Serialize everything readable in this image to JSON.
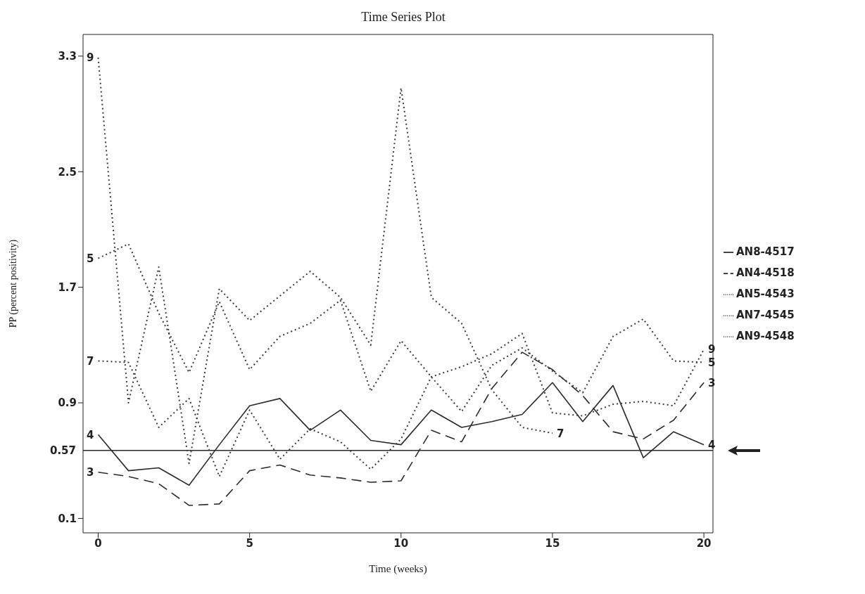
{
  "chart_data": {
    "type": "line",
    "title": "Time Series Plot",
    "xlabel": "Time (weeks)",
    "ylabel": "PP (percent positivity)",
    "x": [
      0,
      1,
      2,
      3,
      4,
      5,
      6,
      7,
      8,
      9,
      10,
      11,
      12,
      13,
      14,
      15,
      16,
      17,
      18,
      19,
      20
    ],
    "series": [
      {
        "name": "AN8-4517",
        "color": "#2b2b2b",
        "line_style": "solid",
        "values": [
          0.68,
          0.43,
          0.45,
          0.33,
          0.61,
          0.88,
          0.93,
          0.71,
          0.85,
          0.64,
          0.61,
          0.85,
          0.73,
          0.77,
          0.82,
          1.04,
          0.77,
          1.02,
          0.52,
          0.7,
          0.61
        ]
      },
      {
        "name": "AN4-4518",
        "color": "#2b2b2b",
        "line_style": "dashed",
        "values": [
          0.42,
          0.39,
          0.34,
          0.19,
          0.2,
          0.43,
          0.47,
          0.4,
          0.38,
          0.35,
          0.36,
          0.71,
          0.63,
          1.0,
          1.25,
          1.13,
          0.95,
          0.7,
          0.65,
          0.78,
          1.04
        ]
      },
      {
        "name": "AN5-4543",
        "color": "#3a3a3a",
        "line_style": "dotted",
        "values": [
          1.9,
          2.0,
          1.52,
          1.11,
          1.6,
          1.13,
          1.36,
          1.45,
          1.61,
          0.98,
          1.33,
          1.08,
          0.84,
          1.16,
          1.28,
          1.12,
          0.97,
          1.36,
          1.48,
          1.19,
          1.18
        ]
      },
      {
        "name": "AN7-4545",
        "color": "#3a3a3a",
        "line_style": "dotted",
        "values": [
          1.19,
          1.18,
          0.73,
          0.93,
          0.39,
          0.85,
          0.51,
          0.72,
          0.63,
          0.44,
          0.65,
          1.08,
          1.15,
          1.24,
          1.38,
          0.83,
          0.81,
          0.89,
          0.91,
          0.88,
          1.27
        ]
      },
      {
        "name": "AN9-4548",
        "color": "#3a3a3a",
        "line_style": "dotted",
        "values": [
          3.29,
          0.9,
          1.84,
          0.48,
          1.69,
          1.47,
          1.64,
          1.81,
          1.63,
          1.3,
          3.08,
          1.63,
          1.45,
          0.99,
          0.73,
          0.69,
          null,
          null,
          null,
          null,
          null
        ]
      }
    ],
    "xlim": [
      -0.5,
      20.3
    ],
    "xticks": [
      0,
      5,
      10,
      15,
      20
    ],
    "ylim": [
      0,
      3.45
    ],
    "yticks": [
      0.1,
      0.9,
      1.7,
      2.5,
      3.3
    ],
    "ref_lines": [
      {
        "axis": "y",
        "value": 0.57,
        "label": "0.57",
        "color": "#2b2b2b"
      }
    ],
    "annotations": [
      {
        "text": "9",
        "x": 0,
        "y": 3.29
      },
      {
        "text": "5",
        "x": 0,
        "y": 1.9
      },
      {
        "text": "7",
        "x": 0,
        "y": 1.19
      },
      {
        "text": "4",
        "x": 0,
        "y": 0.68
      },
      {
        "text": "3",
        "x": 0,
        "y": 0.42
      },
      {
        "text": "9",
        "x": 20,
        "y": 1.27
      },
      {
        "text": "5",
        "x": 20,
        "y": 1.18
      },
      {
        "text": "3",
        "x": 20,
        "y": 1.04
      },
      {
        "text": "4",
        "x": 20,
        "y": 0.61
      },
      {
        "text": "7",
        "x": 15,
        "y": 0.69
      }
    ],
    "legend": "right",
    "grid": false,
    "marker": "none"
  }
}
